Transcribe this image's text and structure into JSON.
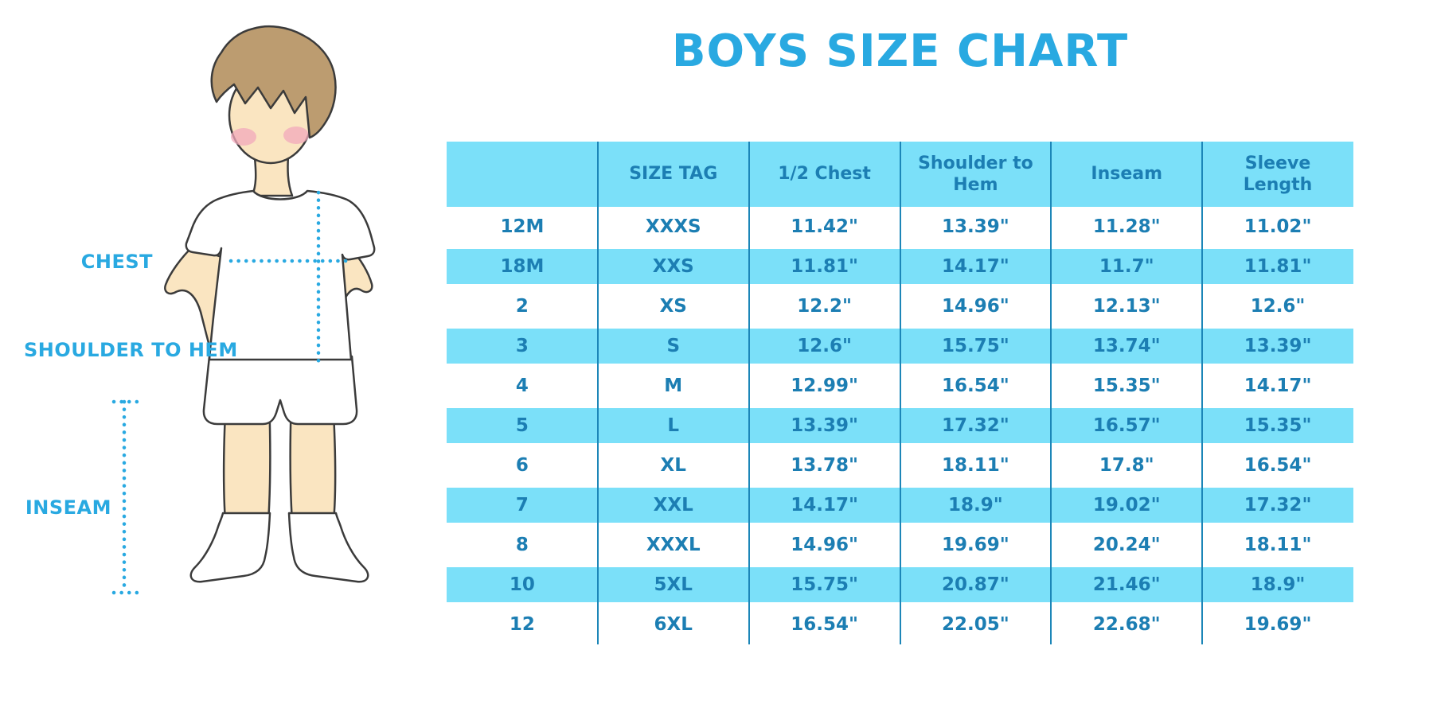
{
  "diagram": {
    "chest_label": "CHEST",
    "shoulder_label": "SHOULDER TO HEM",
    "inseam_label": "INSEAM"
  },
  "chart_data": {
    "type": "table",
    "title": "BOYS SIZE CHART",
    "columns": [
      "",
      "SIZE TAG",
      "1/2 Chest",
      "Shoulder to Hem",
      "Inseam",
      "Sleeve Length"
    ],
    "rows": [
      [
        "12M",
        "XXXS",
        "11.42\"",
        "13.39\"",
        "11.28\"",
        "11.02\""
      ],
      [
        "18M",
        "XXS",
        "11.81\"",
        "14.17\"",
        "11.7\"",
        "11.81\""
      ],
      [
        "2",
        "XS",
        "12.2\"",
        "14.96\"",
        "12.13\"",
        "12.6\""
      ],
      [
        "3",
        "S",
        "12.6\"",
        "15.75\"",
        "13.74\"",
        "13.39\""
      ],
      [
        "4",
        "M",
        "12.99\"",
        "16.54\"",
        "15.35\"",
        "14.17\""
      ],
      [
        "5",
        "L",
        "13.39\"",
        "17.32\"",
        "16.57\"",
        "15.35\""
      ],
      [
        "6",
        "XL",
        "13.78\"",
        "18.11\"",
        "17.8\"",
        "16.54\""
      ],
      [
        "7",
        "XXL",
        "14.17\"",
        "18.9\"",
        "19.02\"",
        "17.32\""
      ],
      [
        "8",
        "XXXL",
        "14.96\"",
        "19.69\"",
        "20.24\"",
        "18.11\""
      ],
      [
        "10",
        "5XL",
        "15.75\"",
        "20.87\"",
        "21.46\"",
        "18.9\""
      ],
      [
        "12",
        "6XL",
        "16.54\"",
        "22.05\"",
        "22.68\"",
        "19.69\""
      ]
    ]
  },
  "colors": {
    "accent_blue": "#29A9E1",
    "band_cyan": "#7BE0F9",
    "cell_text": "#1C7EB3",
    "grid_line": "#1C86B8",
    "skin": "#FAE5C1",
    "hair": "#BC9C70",
    "blush": "#F2A9BC",
    "outline": "#3B3B3B"
  }
}
